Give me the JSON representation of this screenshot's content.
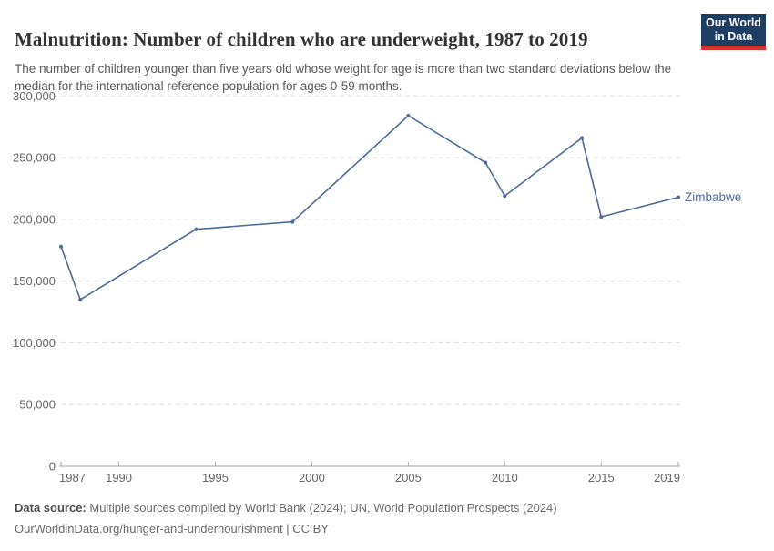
{
  "header": {
    "title": "Malnutrition: Number of children who are underweight, 1987 to 2019",
    "subtitle": "The number of children younger than five years old whose weight for age is more than two standard deviations below the median for the international reference population for ages 0-59 months.",
    "logo": {
      "line1": "Our World",
      "line2": "in Data"
    }
  },
  "footer": {
    "source_label": "Data source:",
    "source_text": " Multiple sources compiled by World Bank (2024); UN, World Population Prospects (2024)",
    "citation": "OurWorldinData.org/hunger-and-undernourishment | CC BY"
  },
  "colors": {
    "line": "#4c6a9c",
    "logo_bg": "#1d3d63",
    "logo_red": "#d13832",
    "grid": "#dddddd",
    "axis": "#a5a5a5",
    "tick_text": "#666666",
    "title_text": "#333333",
    "subtitle_text": "#5b5b5b"
  },
  "chart_data": {
    "type": "line",
    "title": "Malnutrition: Number of children who are underweight, 1987 to 2019",
    "xlabel": "",
    "ylabel": "",
    "xlim": [
      1987,
      2019
    ],
    "ylim": [
      0,
      300000
    ],
    "x_ticks": [
      1987,
      1990,
      1995,
      2000,
      2005,
      2010,
      2015,
      2019
    ],
    "y_ticks": [
      0,
      50000,
      100000,
      150000,
      200000,
      250000,
      300000
    ],
    "grid": true,
    "legend_position": "end-of-line",
    "series": [
      {
        "name": "Zimbabwe",
        "x": [
          1987,
          1988,
          1994,
          1999,
          2005,
          2009,
          2010,
          2014,
          2015,
          2019
        ],
        "values": [
          178000,
          135000,
          192000,
          198000,
          284000,
          246000,
          219000,
          266000,
          202000,
          218000
        ]
      }
    ]
  }
}
